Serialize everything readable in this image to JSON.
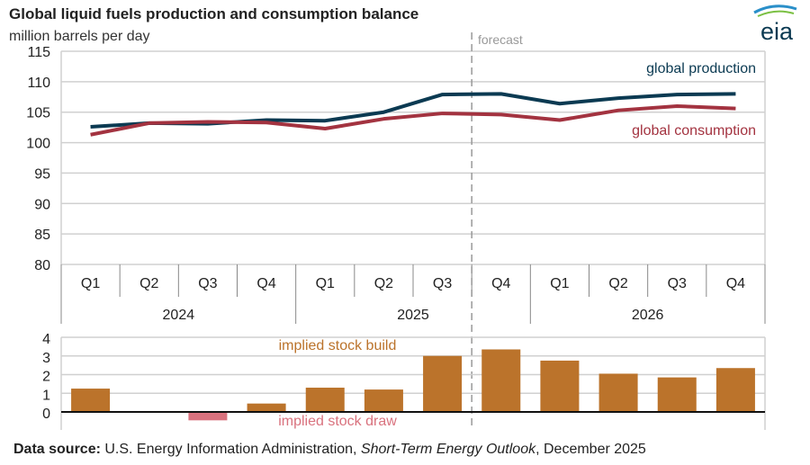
{
  "title": "Global liquid fuels production and consumption balance",
  "subtitle": "million barrels per day",
  "logo": "eia",
  "forecast_label": "forecast",
  "source": {
    "label": "Data source:",
    "text1": " U.S. Energy Information Administration, ",
    "italic": "Short-Term Energy Outlook",
    "text2": ", December 2025"
  },
  "chart_data": [
    {
      "type": "line",
      "quarters": [
        "Q1",
        "Q2",
        "Q3",
        "Q4",
        "Q1",
        "Q2",
        "Q3",
        "Q4",
        "Q1",
        "Q2",
        "Q3",
        "Q4"
      ],
      "years": [
        "2024",
        "2025",
        "2026"
      ],
      "ylim": [
        80,
        115
      ],
      "yticks": [
        "80",
        "85",
        "90",
        "95",
        "100",
        "105",
        "110",
        "115"
      ],
      "series": [
        {
          "name": "global production",
          "color": "#0b3a52",
          "values": [
            102.6,
            103.2,
            103.1,
            103.7,
            103.6,
            105.0,
            107.9,
            108.0,
            106.4,
            107.3,
            107.9,
            108.0
          ]
        },
        {
          "name": "global consumption",
          "color": "#a33340",
          "values": [
            101.3,
            103.2,
            103.4,
            103.3,
            102.3,
            103.9,
            104.8,
            104.6,
            103.7,
            105.3,
            106.0,
            105.6
          ]
        }
      ],
      "forecast_start_index": 7
    },
    {
      "type": "bar",
      "ylim": [
        -1,
        4
      ],
      "yticks": [
        "0",
        "1",
        "2",
        "3",
        "4"
      ],
      "labels": {
        "build": "implied stock build",
        "draw": "implied stock draw"
      },
      "colors": {
        "build": "#bb732b",
        "draw": "#d9727e"
      },
      "values": [
        1.25,
        0.0,
        -0.45,
        0.45,
        1.3,
        1.2,
        3.0,
        3.35,
        2.75,
        2.05,
        1.85,
        2.35
      ]
    }
  ]
}
